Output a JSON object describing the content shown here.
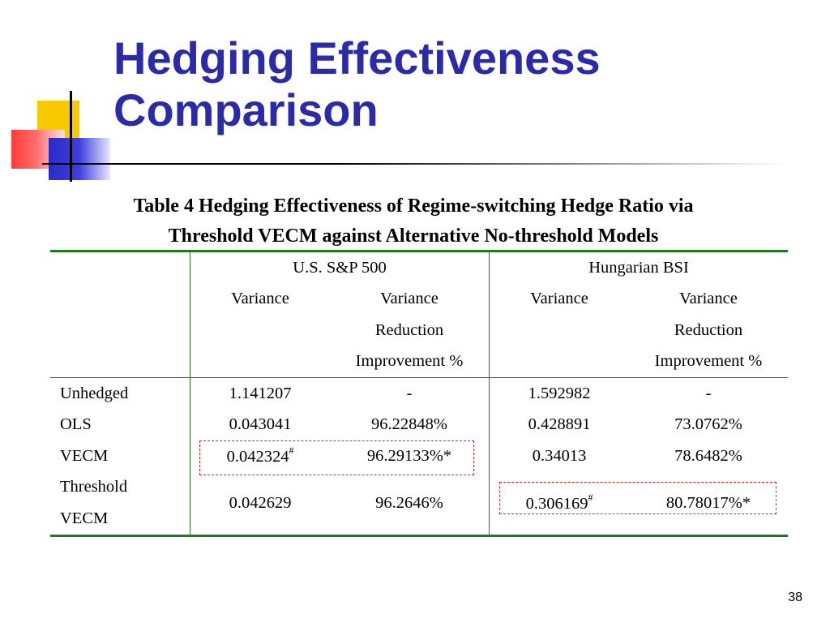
{
  "slide": {
    "title_line1": "Hedging Effectiveness",
    "title_line2": "Comparison",
    "caption_line1": "Table 4 Hedging Effectiveness of Regime-switching Hedge Ratio via",
    "caption_line2": "Threshold VECM against Alternative No-threshold Models",
    "page_number": "38"
  },
  "table": {
    "groups": [
      "U.S. S&P 500",
      "Hungarian BSI"
    ],
    "col_variance": "Variance",
    "col_vr_line1": "Variance",
    "col_vr_line2": "Reduction",
    "col_vr_line3": "Improvement %",
    "rows": [
      {
        "label": "Unhedged",
        "sp_var": "1.141207",
        "sp_vr": "-",
        "bsi_var": "1.592982",
        "bsi_vr": "-"
      },
      {
        "label": "OLS",
        "sp_var": "0.043041",
        "sp_vr": "96.22848%",
        "bsi_var": "0.428891",
        "bsi_vr": "73.0762%"
      },
      {
        "label": "VECM",
        "sp_var": "0.042324",
        "sp_var_mark": "#",
        "sp_vr": "96.29133%*",
        "bsi_var": "0.34013",
        "bsi_vr": "78.6482%"
      },
      {
        "label_line1": "Threshold",
        "label_line2": "VECM",
        "sp_var": "0.042629",
        "sp_vr": "96.2646%",
        "bsi_var": "0.306169",
        "bsi_var_mark": "#",
        "bsi_vr": "80.78017%*"
      }
    ]
  },
  "colors": {
    "title": "#2b2ba8",
    "rules": "#1e7a1e",
    "highlight_box": "#e02020"
  }
}
